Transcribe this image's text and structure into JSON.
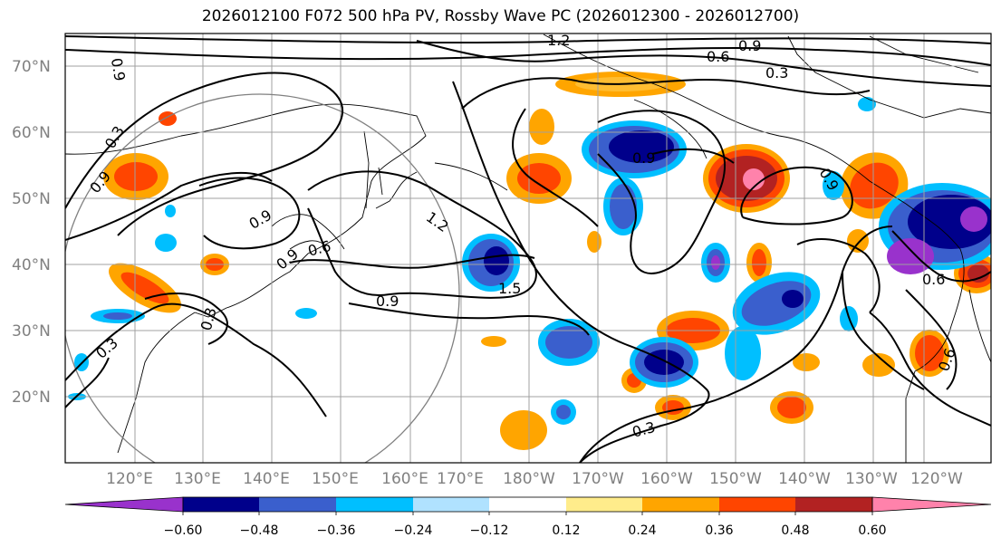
{
  "title": "2026012100 F072 500 hPa PV, Rossby Wave PC (2026012300 - 2026012700)",
  "lat_labels": [
    "70°N",
    "60°N",
    "50°N",
    "40°N",
    "30°N",
    "20°N"
  ],
  "lon_labels": [
    "120°E",
    "130°E",
    "140°E",
    "150°E",
    "160°E",
    "170°E",
    "180°W",
    "170°W",
    "160°W",
    "150°W",
    "140°W",
    "130°W",
    "120°W"
  ],
  "colorbar": {
    "tick_labels": [
      "−0.60",
      "−0.48",
      "−0.36",
      "−0.24",
      "−0.12",
      "0.12",
      "0.24",
      "0.36",
      "0.48",
      "0.60"
    ],
    "colors": [
      "#9932cc",
      "#00008b",
      "#3a5fcd",
      "#00bfff",
      "#b0e2ff",
      "#ffffff",
      "#ffec8b",
      "#ffa500",
      "#ff4500",
      "#b22222",
      "#ff82ab"
    ]
  },
  "contour_labels": [
    "1.2",
    "0.9",
    "0.6",
    "0.3",
    "0.9",
    "0.3",
    "0.9",
    "1.2",
    "0.9",
    "0.6",
    "0.9",
    "1.5",
    "0.9",
    "0.9",
    "0.6",
    "0.3",
    "0.9",
    "0.6",
    "0.3",
    "0.3"
  ],
  "chart_data": {
    "type": "map",
    "variable": "500 hPa PV",
    "overlay": "Rossby Wave PC",
    "lon_range": [
      113,
      247
    ],
    "lat_range": [
      10,
      75
    ],
    "contour_levels": [
      0.3,
      0.6,
      0.9,
      1.2,
      1.5
    ],
    "shading_levels": [
      -0.6,
      -0.48,
      -0.36,
      -0.24,
      -0.12,
      0.12,
      0.24,
      0.36,
      0.48,
      0.6
    ]
  }
}
